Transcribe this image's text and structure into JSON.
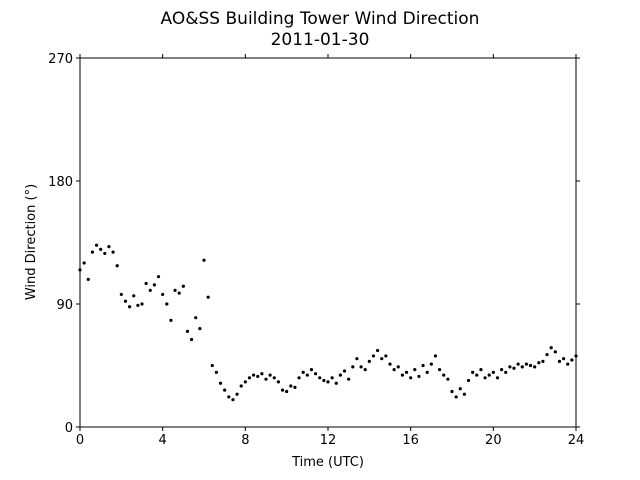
{
  "chart_data": {
    "type": "scatter",
    "title": "AO&SS Building Tower Wind Direction",
    "subtitle": "2011-01-30",
    "x_label": "Time (UTC)",
    "y_label": "Wind Direction (°)",
    "color": "#000000",
    "xlim": [
      0,
      24
    ],
    "xticks": [
      0,
      4,
      8,
      12,
      16,
      20,
      24
    ],
    "ylim": [
      0,
      270
    ],
    "yticks": [
      0,
      90,
      180,
      270
    ],
    "x": [
      0.0,
      0.2,
      0.4,
      0.6,
      0.8,
      1.0,
      1.2,
      1.4,
      1.6,
      1.8,
      2.0,
      2.2,
      2.4,
      2.6,
      2.8,
      3.0,
      3.2,
      3.4,
      3.6,
      3.8,
      4.0,
      4.2,
      4.4,
      4.6,
      4.8,
      5.0,
      5.2,
      5.4,
      5.6,
      5.8,
      6.0,
      6.2,
      6.4,
      6.6,
      6.8,
      7.0,
      7.2,
      7.4,
      7.6,
      7.8,
      8.0,
      8.2,
      8.4,
      8.6,
      8.8,
      9.0,
      9.2,
      9.4,
      9.6,
      9.8,
      10.0,
      10.2,
      10.4,
      10.6,
      10.8,
      11.0,
      11.2,
      11.4,
      11.6,
      11.8,
      12.0,
      12.2,
      12.4,
      12.6,
      12.8,
      13.0,
      13.2,
      13.4,
      13.6,
      13.8,
      14.0,
      14.2,
      14.4,
      14.6,
      14.8,
      15.0,
      15.2,
      15.4,
      15.6,
      15.8,
      16.0,
      16.2,
      16.4,
      16.6,
      16.8,
      17.0,
      17.2,
      17.4,
      17.6,
      17.8,
      18.0,
      18.2,
      18.4,
      18.6,
      18.8,
      19.0,
      19.2,
      19.4,
      19.6,
      19.8,
      20.0,
      20.2,
      20.4,
      20.6,
      20.8,
      21.0,
      21.2,
      21.4,
      21.6,
      21.8,
      22.0,
      22.2,
      22.4,
      22.6,
      22.8,
      23.0,
      23.2,
      23.4,
      23.6,
      23.8,
      24.0
    ],
    "values": [
      115,
      120,
      108,
      128,
      133,
      130,
      127,
      132,
      128,
      118,
      97,
      92,
      88,
      96,
      89,
      90,
      105,
      100,
      104,
      110,
      97,
      90,
      78,
      100,
      98,
      103,
      70,
      64,
      80,
      72,
      122,
      95,
      45,
      40,
      32,
      27,
      22,
      20,
      24,
      30,
      33,
      36,
      38,
      37,
      39,
      35,
      38,
      36,
      33,
      27,
      26,
      30,
      29,
      36,
      40,
      38,
      42,
      39,
      36,
      34,
      33,
      36,
      32,
      38,
      41,
      35,
      44,
      50,
      44,
      42,
      48,
      52,
      56,
      50,
      52,
      46,
      42,
      44,
      38,
      40,
      36,
      42,
      37,
      45,
      40,
      46,
      52,
      42,
      38,
      35,
      26,
      22,
      28,
      24,
      34,
      40,
      38,
      42,
      36,
      38,
      40,
      36,
      42,
      40,
      44,
      43,
      46,
      44,
      46,
      45,
      44,
      47,
      48,
      53,
      58,
      55,
      48,
      50,
      46,
      49,
      52
    ]
  }
}
